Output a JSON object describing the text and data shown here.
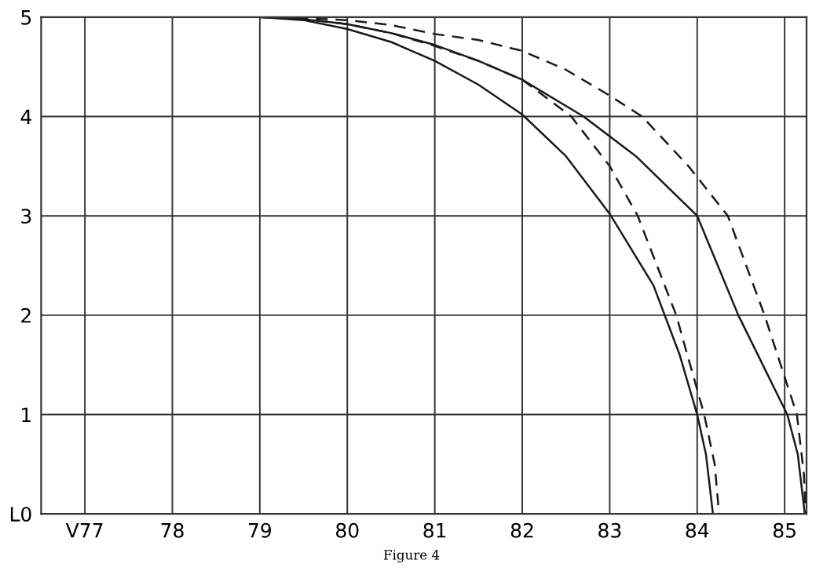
{
  "chart_data": {
    "type": "line",
    "annotations": [
      "Figure 4"
    ],
    "series": [
      {
        "color": "#1a1a1a",
        "line_style": "solid",
        "x": [
          76.5,
          77,
          78,
          79,
          79.5,
          80,
          80.5,
          81,
          81.5,
          82,
          82.5,
          83,
          83.5,
          83.8,
          84,
          84.1,
          84.18
        ],
        "values": [
          5,
          5,
          5,
          5,
          4.97,
          4.88,
          4.75,
          4.56,
          4.32,
          4.02,
          3.6,
          3.02,
          2.3,
          1.6,
          1.0,
          0.6,
          0
        ]
      },
      {
        "color": "#1a1a1a",
        "line_style": "dashed",
        "x": [
          76.5,
          77,
          78,
          79,
          79.5,
          80,
          80.5,
          81,
          81.5,
          82,
          82.56,
          83,
          83.32,
          83.76,
          84.08,
          84.2,
          84.25
        ],
        "values": [
          5,
          5,
          5,
          5,
          4.98,
          4.93,
          4.84,
          4.71,
          4.56,
          4.37,
          4.0,
          3.5,
          3.0,
          2.0,
          1.0,
          0.5,
          0
        ]
      },
      {
        "color": "#1a1a1a",
        "line_style": "solid",
        "x": [
          76.5,
          77,
          78,
          79,
          79.5,
          80,
          80.5,
          81,
          81.5,
          82,
          82.7,
          83.3,
          84,
          84.47,
          85.03,
          85.15,
          85.23
        ],
        "values": [
          5,
          5,
          5,
          5,
          4.98,
          4.93,
          4.84,
          4.72,
          4.56,
          4.37,
          4.0,
          3.6,
          3.0,
          2.0,
          1.0,
          0.6,
          0
        ]
      },
      {
        "color": "#1a1a1a",
        "line_style": "dashed",
        "x": [
          76.5,
          77,
          78,
          79,
          79.5,
          80,
          80.5,
          81,
          81.5,
          82,
          82.5,
          83,
          83.37,
          83.9,
          84.35,
          84.77,
          85.14,
          85.22,
          85.24
        ],
        "values": [
          5,
          5,
          5,
          5,
          4.99,
          4.97,
          4.92,
          4.83,
          4.77,
          4.66,
          4.47,
          4.21,
          4.0,
          3.5,
          3.0,
          2.0,
          1.0,
          0.4,
          0
        ]
      }
    ],
    "xlim": [
      76.5,
      85.25
    ],
    "ylim": [
      0,
      5
    ],
    "xticks": [
      {
        "value": 77,
        "label": "V77"
      },
      78,
      79,
      80,
      81,
      82,
      83,
      84,
      85
    ],
    "yticks": [
      {
        "value": 0,
        "label": "L0"
      },
      1,
      2,
      3,
      4,
      5
    ],
    "grid": true
  }
}
